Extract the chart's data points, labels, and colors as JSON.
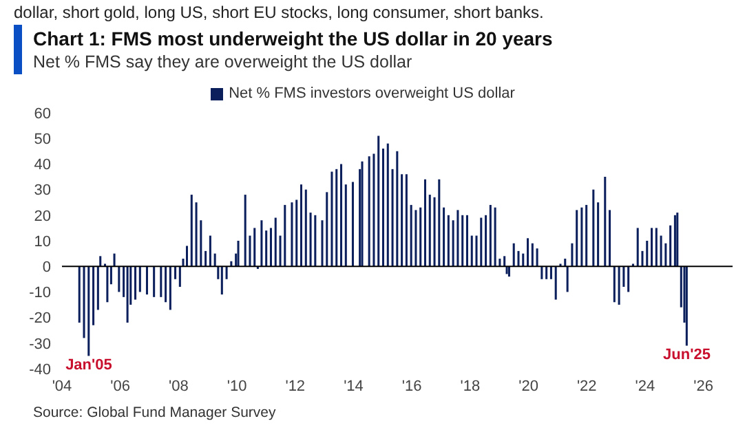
{
  "chart_data": {
    "type": "bar",
    "title": "Chart 1: FMS most underweight the US dollar in 20 years",
    "subtitle": "Net % FMS say they are overweight the US dollar",
    "x": [
      2004.6,
      2004.76,
      2004.92,
      2005.08,
      2005.24,
      2005.32,
      2005.48,
      2005.56,
      2005.69,
      2005.8,
      2005.96,
      2006.12,
      2006.25,
      2006.36,
      2006.52,
      2006.68,
      2006.92,
      2007.16,
      2007.4,
      2007.56,
      2007.72,
      2007.89,
      2008.05,
      2008.16,
      2008.29,
      2008.45,
      2008.61,
      2008.77,
      2008.93,
      2009.09,
      2009.25,
      2009.36,
      2009.49,
      2009.65,
      2009.81,
      2009.97,
      2010.05,
      2010.29,
      2010.45,
      2010.61,
      2010.72,
      2010.85,
      2011.01,
      2011.17,
      2011.33,
      2011.49,
      2011.65,
      2011.89,
      2012.05,
      2012.21,
      2012.37,
      2012.53,
      2012.69,
      2012.93,
      2013.09,
      2013.26,
      2013.42,
      2013.58,
      2013.74,
      2013.98,
      2014.22,
      2014.3,
      2014.54,
      2014.7,
      2014.86,
      2015.02,
      2015.18,
      2015.34,
      2015.5,
      2015.66,
      2015.82,
      2015.98,
      2016.14,
      2016.3,
      2016.46,
      2016.62,
      2016.78,
      2016.94,
      2017.1,
      2017.26,
      2017.42,
      2017.58,
      2017.74,
      2017.9,
      2018.06,
      2018.22,
      2018.38,
      2018.54,
      2018.7,
      2018.86,
      2019.02,
      2019.18,
      2019.26,
      2019.34,
      2019.5,
      2019.66,
      2019.82,
      2019.98,
      2020.14,
      2020.3,
      2020.46,
      2020.62,
      2020.78,
      2020.94,
      2021.1,
      2021.26,
      2021.34,
      2021.5,
      2021.66,
      2021.83,
      2021.99,
      2022.23,
      2022.39,
      2022.63,
      2022.79,
      2022.95,
      2023.11,
      2023.27,
      2023.43,
      2023.59,
      2023.75,
      2023.91,
      2024.07,
      2024.23,
      2024.39,
      2024.55,
      2024.71,
      2024.87,
      2025.03,
      2025.11,
      2025.24,
      2025.35,
      2025.43
    ],
    "series": [
      {
        "name": "Net % FMS investors overweight US dollar",
        "color": "#0b1f5c",
        "values": [
          -22,
          -28,
          -35,
          -23,
          -17,
          4,
          1,
          -14,
          -7,
          5,
          -10,
          -12,
          -22,
          -15,
          -13,
          -10,
          -11,
          -12,
          -12,
          -14,
          -17,
          -5,
          -8,
          3,
          8,
          28,
          25,
          18,
          6,
          12,
          5,
          -5,
          -11,
          -5,
          2,
          5,
          10,
          28,
          12,
          15,
          -1,
          18,
          14,
          15,
          19,
          12,
          24,
          25,
          26,
          32,
          30,
          21,
          20,
          18,
          29,
          37,
          38,
          40,
          32,
          33,
          38,
          41,
          43,
          44,
          51,
          46,
          48,
          38,
          45,
          36,
          36,
          24,
          22,
          23,
          34,
          28,
          27,
          34,
          23,
          20,
          18,
          22,
          20,
          20,
          12,
          12,
          19,
          20,
          24,
          23,
          3,
          4,
          -3,
          -4,
          9,
          6,
          5,
          11,
          9,
          7,
          -5,
          -5,
          -5,
          -13,
          1,
          3,
          -10,
          9,
          22,
          23,
          24,
          30,
          25,
          35,
          22,
          -14,
          -15,
          -8,
          -10,
          1,
          15,
          6,
          10,
          15,
          15,
          12,
          9,
          16,
          20,
          21,
          -16,
          -22,
          -31
        ]
      }
    ],
    "xlim": [
      2004,
      2027
    ],
    "xticks": [
      {
        "value": 2004,
        "label": "'04"
      },
      {
        "value": 2006,
        "label": "'06"
      },
      {
        "value": 2008,
        "label": "'08"
      },
      {
        "value": 2010,
        "label": "'10"
      },
      {
        "value": 2012,
        "label": "'12"
      },
      {
        "value": 2014,
        "label": "'14"
      },
      {
        "value": 2016,
        "label": "'16"
      },
      {
        "value": 2018,
        "label": "'18"
      },
      {
        "value": 2020,
        "label": "'20"
      },
      {
        "value": 2022,
        "label": "'22"
      },
      {
        "value": 2024,
        "label": "'24"
      },
      {
        "value": 2026,
        "label": "'26"
      }
    ],
    "ylim": [
      -40,
      60
    ],
    "yticks": [
      -40,
      -30,
      -20,
      -10,
      0,
      10,
      20,
      30,
      40,
      50,
      60
    ],
    "ref_lines": [
      {
        "axis": "y",
        "value": 0,
        "color": "#000000"
      }
    ],
    "legend": "top",
    "annotations": [
      "dollar, short gold, long US, short EU stocks, long consumer, short banks.",
      {
        "text": "Jan'05",
        "x": 2004.92,
        "y": -35
      },
      {
        "text": "Jun'25",
        "x": 2025.43,
        "y": -31
      },
      "Source: Global Fund Manager Survey"
    ]
  }
}
